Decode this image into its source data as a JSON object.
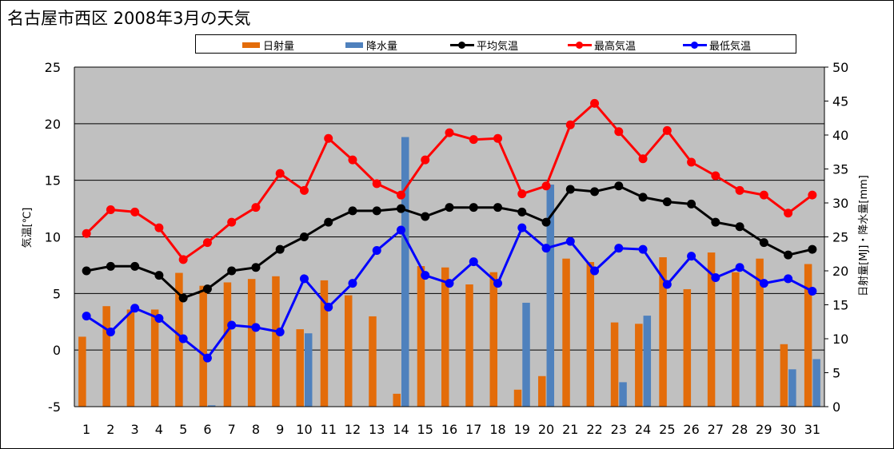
{
  "title": "名古屋市西区  2008年3月の天気",
  "legend": [
    {
      "label": "日射量",
      "kind": "bar",
      "color": "#e36c0a"
    },
    {
      "label": "降水量",
      "kind": "bar",
      "color": "#4f81bd"
    },
    {
      "label": "平均気温",
      "kind": "line",
      "color": "#000000"
    },
    {
      "label": "最高気温",
      "kind": "line",
      "color": "#ff0000"
    },
    {
      "label": "最低気温",
      "kind": "line",
      "color": "#0000ff"
    }
  ],
  "chart_data": {
    "type": "bar",
    "title": "名古屋市西区  2008年3月の天気",
    "categories": [
      "1",
      "2",
      "3",
      "4",
      "5",
      "6",
      "7",
      "8",
      "9",
      "10",
      "11",
      "12",
      "13",
      "14",
      "15",
      "16",
      "17",
      "18",
      "19",
      "20",
      "21",
      "22",
      "23",
      "24",
      "25",
      "26",
      "27",
      "28",
      "29",
      "30",
      "31"
    ],
    "ylabel": "気温[℃]",
    "ylabel_right": "日射量[MJ]・降水量[mm]",
    "ylim": [
      -5,
      25
    ],
    "ylim_right": [
      0,
      50
    ],
    "yticks": [
      -5,
      0,
      5,
      10,
      15,
      20,
      25
    ],
    "yticks_right": [
      0,
      5,
      10,
      15,
      20,
      25,
      30,
      35,
      40,
      45,
      50
    ],
    "grid": true,
    "legend_position": "top",
    "series": [
      {
        "name": "日射量",
        "type": "bar",
        "axis": "right",
        "color": "#e36c0a",
        "values": [
          10.3,
          14.8,
          14.3,
          14.3,
          19.7,
          17.8,
          18.3,
          18.8,
          19.2,
          11.4,
          18.6,
          16.4,
          13.3,
          1.9,
          20.7,
          20.5,
          18.0,
          19.8,
          2.5,
          4.5,
          21.8,
          21.3,
          12.4,
          12.2,
          22.0,
          17.3,
          22.7,
          19.8,
          21.8,
          9.2,
          21.0
        ]
      },
      {
        "name": "降水量",
        "type": "bar",
        "axis": "right",
        "color": "#4f81bd",
        "values": [
          0,
          0,
          0,
          0,
          0,
          0.2,
          0,
          0,
          0,
          10.8,
          0,
          0,
          0,
          39.7,
          0,
          0,
          0,
          0,
          15.3,
          32.7,
          0,
          0,
          3.6,
          13.4,
          0,
          0,
          0,
          0,
          0,
          5.5,
          7.0
        ]
      },
      {
        "name": "平均気温",
        "type": "line",
        "axis": "left",
        "color": "#000000",
        "values": [
          7.0,
          7.4,
          7.4,
          6.6,
          4.6,
          5.4,
          7.0,
          7.3,
          8.9,
          10.0,
          11.3,
          12.3,
          12.3,
          12.5,
          11.8,
          12.6,
          12.6,
          12.6,
          12.2,
          11.3,
          14.2,
          14.0,
          14.5,
          13.5,
          13.1,
          12.9,
          11.3,
          10.9,
          9.5,
          8.4,
          8.9
        ]
      },
      {
        "name": "最高気温",
        "type": "line",
        "axis": "left",
        "color": "#ff0000",
        "values": [
          10.3,
          12.4,
          12.2,
          10.8,
          8.0,
          9.5,
          11.3,
          12.6,
          15.6,
          14.1,
          18.7,
          16.8,
          14.7,
          13.7,
          16.8,
          19.2,
          18.6,
          18.7,
          13.8,
          14.5,
          19.9,
          21.8,
          19.3,
          16.9,
          19.4,
          16.6,
          15.4,
          14.1,
          13.7,
          12.1,
          13.7
        ]
      },
      {
        "name": "最低気温",
        "type": "line",
        "axis": "left",
        "color": "#0000ff",
        "values": [
          3.0,
          1.6,
          3.7,
          2.8,
          1.0,
          -0.7,
          2.2,
          2.0,
          1.6,
          6.3,
          3.8,
          5.9,
          8.8,
          10.6,
          6.6,
          5.9,
          7.8,
          5.9,
          10.8,
          9.0,
          9.6,
          7.0,
          9.0,
          8.9,
          5.8,
          8.3,
          6.4,
          7.3,
          5.9,
          6.3,
          5.2
        ]
      }
    ]
  }
}
